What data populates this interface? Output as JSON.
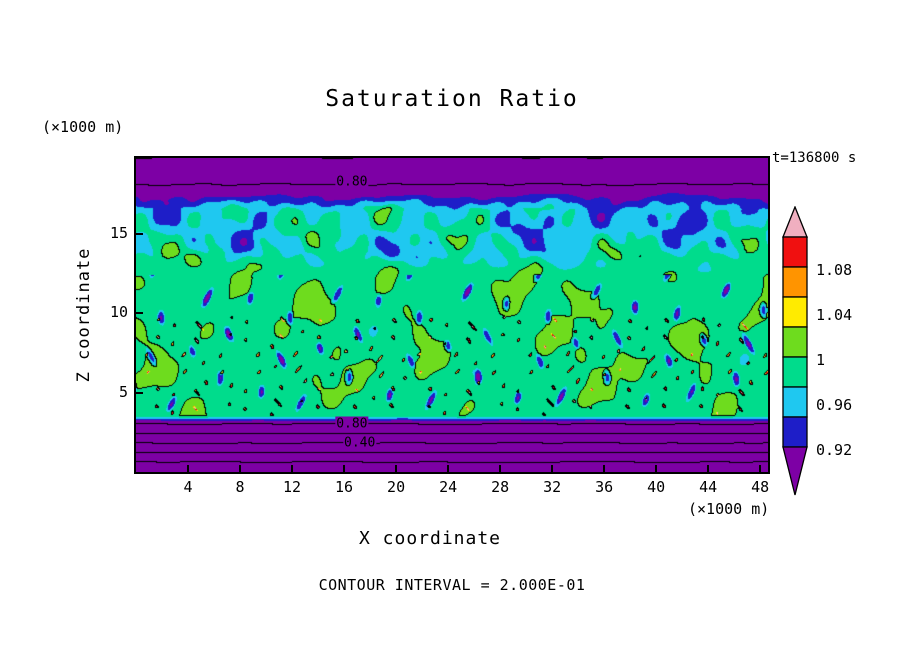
{
  "title": "Saturation Ratio",
  "time_label": "t=136800 s",
  "footer": "CONTOUR INTERVAL = 2.000E-01",
  "axes": {
    "x_label": "X coordinate",
    "x_unit": "(×1000 m)",
    "y_label": "Z coordinate",
    "y_unit": "(×1000 m)",
    "x_ticks": [
      4,
      8,
      12,
      16,
      20,
      24,
      28,
      32,
      36,
      40,
      44,
      48
    ],
    "y_ticks": [
      5,
      10,
      15
    ]
  },
  "colorbar": {
    "tick_labels": [
      "1.08",
      "1.04",
      "1",
      "0.96",
      "0.92"
    ],
    "segment_colors_top_to_bottom": [
      "#F0AFC0",
      "#F01010",
      "#FF9400",
      "#FFEB00",
      "#6EDC1E",
      "#00DC8C",
      "#1FC8F0",
      "#1E1EC8",
      "#7D00A5"
    ]
  },
  "chart_data": {
    "type": "filled-contour",
    "title": "Saturation Ratio",
    "xlabel": "X coordinate (×1000 m)",
    "ylabel": "Z coordinate (×1000 m)",
    "time": "t=136800 s",
    "contour_interval": 0.2,
    "x_range": [
      0,
      48.6
    ],
    "z_range": [
      0,
      19.8
    ],
    "fill_levels": [
      0.88,
      0.92,
      0.96,
      1.0,
      1.04,
      1.08,
      1.12,
      1.16
    ],
    "fill_colors": [
      "#7D00A5",
      "#1E1EC8",
      "#1FC8F0",
      "#00DC8C",
      "#6EDC1E",
      "#FFEB00",
      "#FF9400",
      "#F01010",
      "#F0AFC0"
    ],
    "line_labels": [
      {
        "text": "0.80",
        "x": 16.6,
        "z": 18.3
      },
      {
        "text": "0.80",
        "x": 16.6,
        "z": 3.05
      },
      {
        "text": "0.40",
        "x": 17.2,
        "z": 1.8
      }
    ],
    "structure": {
      "description": "Saturation ratio field: unsaturated (purple, S<0.88) layers at top and bottom with black line contours every 0.2 (labels 0.40, 0.80); near-saturated interior (S≈0.96-1.0, green) from z≈3.5 to 13 km containing supersaturated cloud blobs (S>1.0, yellow-green, outlined by the 1.0 contour), sparse cyan/blue dry pockets and tiny red S>1.12 speckles; a turbulent drier layer at z≈13.5-17.5 km with purple/blue/cyan patches mixed with green.",
      "base_profile": [
        [
          0,
          -0.2
        ],
        [
          1.8,
          0.4
        ],
        [
          3.0,
          0.8
        ],
        [
          3.55,
          0.99
        ],
        [
          12.2,
          0.99
        ],
        [
          14.2,
          0.952
        ],
        [
          16.6,
          0.946
        ],
        [
          17.35,
          0.88
        ],
        [
          18.1,
          0.8
        ],
        [
          19.8,
          0.6
        ]
      ],
      "noise_amplitude": [
        [
          0,
          0.01
        ],
        [
          2.8,
          0.01
        ],
        [
          3.3,
          0.018
        ],
        [
          4.5,
          0.035
        ],
        [
          12.2,
          0.035
        ],
        [
          13.6,
          0.085
        ],
        [
          16.6,
          0.085
        ],
        [
          17.4,
          0.045
        ],
        [
          18.0,
          0.012
        ],
        [
          19.8,
          0.01
        ]
      ],
      "mix_zone": [
        12.2,
        13.8,
        16.9,
        17.8
      ],
      "dip": {
        "threshold": 0.9,
        "gain": 1.1,
        "zmin": 3.8,
        "zmax": 12.4
      },
      "speckle": {
        "threshold": 0.97,
        "gain": 6.0,
        "zmin": 3.55,
        "zmax": 9.8
      }
    }
  }
}
